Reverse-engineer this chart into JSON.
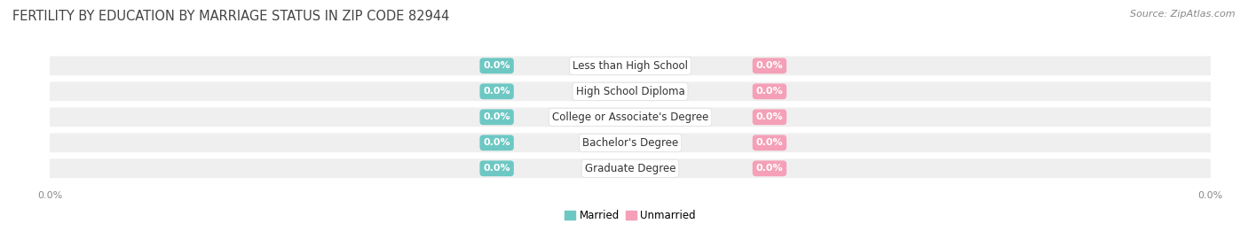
{
  "title": "FERTILITY BY EDUCATION BY MARRIAGE STATUS IN ZIP CODE 82944",
  "source": "Source: ZipAtlas.com",
  "categories": [
    "Less than High School",
    "High School Diploma",
    "College or Associate's Degree",
    "Bachelor's Degree",
    "Graduate Degree"
  ],
  "married_values": [
    0.0,
    0.0,
    0.0,
    0.0,
    0.0
  ],
  "unmarried_values": [
    0.0,
    0.0,
    0.0,
    0.0,
    0.0
  ],
  "married_color": "#6dc8c4",
  "unmarried_color": "#f5a0b8",
  "row_bg_color": "#efefef",
  "title_fontsize": 10.5,
  "source_fontsize": 8,
  "background_color": "#ffffff",
  "title_color": "#444444",
  "source_color": "#888888",
  "category_fontsize": 8.5,
  "value_fontsize": 8,
  "legend_fontsize": 8.5,
  "axis_tick_fontsize": 8
}
